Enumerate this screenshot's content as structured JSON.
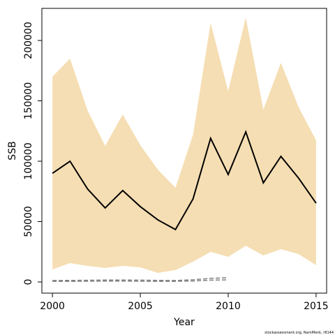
{
  "chart_data": {
    "type": "line",
    "xlabel": "Year",
    "ylabel": "SSB",
    "footer": "stockassessment.org, NamMonk, r8144",
    "x": [
      2000,
      2001,
      2002,
      2003,
      2004,
      2005,
      2006,
      2007,
      2008,
      2009,
      2010,
      2011,
      2012,
      2013,
      2014,
      2015
    ],
    "series": [
      {
        "color": "#000000",
        "values": [
          90000,
          100000,
          77000,
          61300,
          75700,
          62400,
          51400,
          43400,
          68800,
          119000,
          89000,
          124300,
          82100,
          104000,
          86100,
          65300
        ]
      }
    ],
    "band": {
      "color": "#f5deb3",
      "upper": [
        170000,
        185000,
        142000,
        112700,
        138700,
        113300,
        93000,
        78000,
        122000,
        214500,
        158000,
        219000,
        142800,
        181500,
        145000,
        117300
      ],
      "lower": [
        10400,
        15600,
        13300,
        11600,
        13300,
        12100,
        7500,
        9800,
        16800,
        24900,
        20800,
        30000,
        22000,
        27200,
        23100,
        13900
      ]
    },
    "dashed": {
      "color": "#808080",
      "x": [
        2000,
        2001,
        2002,
        2003,
        2004,
        2005,
        2006,
        2007,
        2008,
        2009,
        2010
      ],
      "series": [
        [
          500,
          500,
          600,
          700,
          700,
          600,
          500,
          500,
          800,
          1500,
          1800
        ],
        [
          1200,
          1300,
          1400,
          1600,
          1600,
          1500,
          1300,
          1200,
          1800,
          3000,
          3500
        ]
      ]
    },
    "xlim": [
      1999.4,
      2015.6
    ],
    "ylim": [
      -9250,
      226590
    ],
    "xticks": [
      2000,
      2005,
      2010,
      2015
    ],
    "yticks": [
      0,
      50000,
      100000,
      150000,
      200000
    ]
  }
}
